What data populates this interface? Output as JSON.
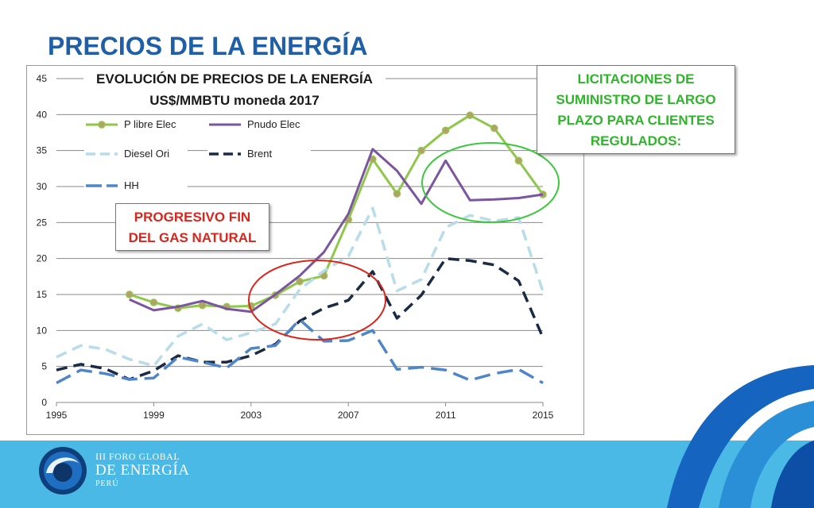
{
  "slide": {
    "title": "PRECIOS DE LA ENERGÍA",
    "callout_licitaciones": [
      "LICITACIONES DE",
      "SUMINISTRO DE LARGO",
      "PLAZO PARA CLIENTES",
      "REGULADOS:"
    ],
    "callout_progresivo": [
      "PROGRESIVO FIN",
      "DEL GAS NATURAL"
    ],
    "footer": {
      "line1": "III FORO GLOBAL",
      "line2": "DE ENERGÍA",
      "line3": "PERÚ"
    }
  },
  "colors": {
    "title": "#1f5fa8",
    "green_callout": "#2fb52a",
    "red_callout": "#d9261c",
    "footer_band": "#4ab9e6",
    "swoosh_dark": "#1565c0"
  },
  "chart_data": {
    "type": "line",
    "title": "EVOLUCIÓN DE PRECIOS DE LA ENERGÍA",
    "subtitle": "US$/MMBTU moneda 2017",
    "xlabel": "",
    "ylabel": "",
    "xlim": [
      1995,
      2015
    ],
    "ylim": [
      0,
      45
    ],
    "x_ticks": [
      1995,
      1999,
      2003,
      2007,
      2011,
      2015
    ],
    "y_ticks": [
      0,
      5,
      10,
      15,
      20,
      25,
      30,
      35,
      40,
      45
    ],
    "grid": "horizontal",
    "legend_position": "top-left",
    "series": [
      {
        "name": "P libre Elec",
        "color": "#8fc74a",
        "style": "solid",
        "markers": true,
        "x": [
          1998,
          1999,
          2000,
          2001,
          2002,
          2003,
          2004,
          2005,
          2006,
          2007,
          2008,
          2009,
          2010,
          2011,
          2012,
          2013,
          2014,
          2015
        ],
        "y": [
          15,
          13.9,
          13.1,
          13.5,
          13.3,
          13.4,
          14.9,
          16.8,
          17.6,
          25.4,
          33.8,
          29,
          35,
          37.8,
          39.9,
          38.1,
          33.6,
          28.9
        ]
      },
      {
        "name": "Pnudo Elec",
        "color": "#7b559e",
        "style": "solid",
        "markers": false,
        "x": [
          1998,
          1999,
          2000,
          2001,
          2002,
          2003,
          2004,
          2005,
          2006,
          2007,
          2008,
          2009,
          2010,
          2011,
          2012,
          2013,
          2014,
          2015
        ],
        "y": [
          14.3,
          12.8,
          13.3,
          14.1,
          13,
          12.6,
          15,
          17.6,
          20.9,
          26.2,
          35.2,
          32.2,
          27.6,
          33.6,
          28.1,
          28.2,
          28.4,
          28.9
        ]
      },
      {
        "name": "Diesel Ori",
        "color": "#b9dce9",
        "style": "dash",
        "markers": false,
        "x": [
          1995,
          1996,
          1997,
          1998,
          1999,
          2000,
          2001,
          2002,
          2003,
          2004,
          2005,
          2006,
          2007,
          2008,
          2009,
          2010,
          2011,
          2012,
          2013,
          2014,
          2015
        ],
        "y": [
          6.3,
          7.9,
          7.4,
          6,
          5.1,
          9.2,
          10.9,
          8.7,
          9.7,
          10.9,
          15.7,
          18.3,
          20.3,
          27,
          15.5,
          17.1,
          24.3,
          26,
          25.2,
          25.7,
          15.4
        ]
      },
      {
        "name": "Brent",
        "color": "#1b2b44",
        "style": "dash",
        "markers": false,
        "x": [
          1995,
          1996,
          1997,
          1998,
          1999,
          2000,
          2001,
          2002,
          2003,
          2004,
          2005,
          2006,
          2007,
          2008,
          2009,
          2010,
          2011,
          2012,
          2013,
          2014,
          2015
        ],
        "y": [
          4.5,
          5.3,
          4.7,
          3.2,
          4.4,
          6.5,
          5.6,
          5.6,
          6.5,
          8.1,
          11.3,
          13.1,
          14.2,
          18.2,
          11.7,
          14.9,
          20,
          19.7,
          19.1,
          16.9,
          9
        ]
      },
      {
        "name": "HH",
        "color": "#4f86c9",
        "style": "dash",
        "markers": false,
        "x": [
          1995,
          1996,
          1997,
          1998,
          1999,
          2000,
          2001,
          2002,
          2003,
          2004,
          2005,
          2006,
          2007,
          2008,
          2009,
          2010,
          2011,
          2012,
          2013,
          2014,
          2015
        ],
        "y": [
          2.7,
          4.5,
          4,
          3.2,
          3.4,
          6.3,
          5.6,
          4.8,
          7.5,
          7.9,
          11.5,
          8.5,
          8.6,
          10,
          4.6,
          4.9,
          4.5,
          3.1,
          4,
          4.6,
          2.7
        ]
      }
    ]
  }
}
